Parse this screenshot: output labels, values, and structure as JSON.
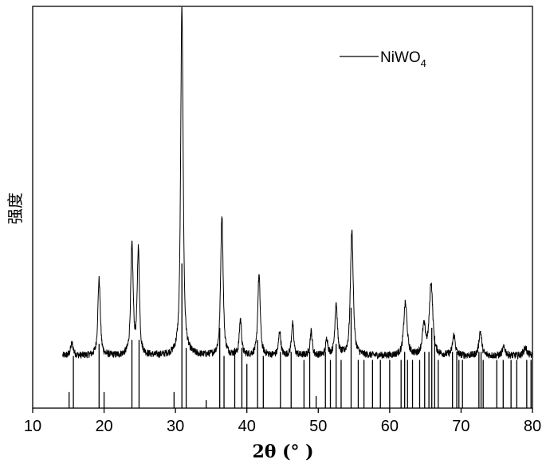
{
  "chart_data": {
    "type": "line",
    "title": "",
    "xlabel": "2θ (° )",
    "ylabel": "强度",
    "xlim": [
      10,
      80
    ],
    "ylim": [
      0,
      100
    ],
    "xticks": [
      10,
      20,
      30,
      40,
      50,
      60,
      70,
      80
    ],
    "grid": false,
    "legend": {
      "position": "top-right",
      "entries": [
        {
          "name": "NiWO",
          "subscript": "4"
        }
      ]
    },
    "pattern": {
      "baseline": 13,
      "noise": 0.9,
      "peaks": [
        {
          "x": 15.5,
          "h": 3,
          "w": 0.25
        },
        {
          "x": 19.3,
          "h": 19,
          "w": 0.22
        },
        {
          "x": 23.9,
          "h": 27,
          "w": 0.22
        },
        {
          "x": 24.8,
          "h": 26,
          "w": 0.2
        },
        {
          "x": 30.9,
          "h": 87,
          "w": 0.22
        },
        {
          "x": 36.5,
          "h": 35,
          "w": 0.22
        },
        {
          "x": 39.1,
          "h": 9,
          "w": 0.2
        },
        {
          "x": 41.7,
          "h": 20,
          "w": 0.22
        },
        {
          "x": 44.6,
          "h": 6,
          "w": 0.2
        },
        {
          "x": 46.4,
          "h": 8,
          "w": 0.2
        },
        {
          "x": 49.0,
          "h": 6,
          "w": 0.2
        },
        {
          "x": 51.2,
          "h": 4,
          "w": 0.2
        },
        {
          "x": 52.5,
          "h": 13,
          "w": 0.22
        },
        {
          "x": 54.7,
          "h": 31,
          "w": 0.25
        },
        {
          "x": 62.2,
          "h": 13,
          "w": 0.3
        },
        {
          "x": 64.8,
          "h": 7,
          "w": 0.3
        },
        {
          "x": 65.8,
          "h": 18,
          "w": 0.3
        },
        {
          "x": 69.0,
          "h": 5,
          "w": 0.25
        },
        {
          "x": 72.7,
          "h": 6,
          "w": 0.25
        },
        {
          "x": 76.0,
          "h": 2,
          "w": 0.3
        },
        {
          "x": 79.0,
          "h": 2,
          "w": 0.3
        }
      ]
    },
    "reference_lines": [
      {
        "x": 15.1,
        "h": 4
      },
      {
        "x": 15.7,
        "h": 13
      },
      {
        "x": 19.3,
        "h": 16
      },
      {
        "x": 20.0,
        "h": 4
      },
      {
        "x": 23.9,
        "h": 17
      },
      {
        "x": 24.9,
        "h": 17
      },
      {
        "x": 29.8,
        "h": 4
      },
      {
        "x": 30.9,
        "h": 36
      },
      {
        "x": 31.5,
        "h": 15
      },
      {
        "x": 34.3,
        "h": 2
      },
      {
        "x": 36.2,
        "h": 20
      },
      {
        "x": 36.8,
        "h": 13
      },
      {
        "x": 38.3,
        "h": 15
      },
      {
        "x": 39.3,
        "h": 15
      },
      {
        "x": 40.0,
        "h": 11
      },
      {
        "x": 41.5,
        "h": 17
      },
      {
        "x": 42.3,
        "h": 13
      },
      {
        "x": 44.7,
        "h": 14
      },
      {
        "x": 46.2,
        "h": 14
      },
      {
        "x": 48.0,
        "h": 12
      },
      {
        "x": 48.8,
        "h": 14
      },
      {
        "x": 49.7,
        "h": 3
      },
      {
        "x": 51.0,
        "h": 14
      },
      {
        "x": 51.7,
        "h": 12
      },
      {
        "x": 52.5,
        "h": 16
      },
      {
        "x": 53.2,
        "h": 12
      },
      {
        "x": 54.6,
        "h": 25
      },
      {
        "x": 55.6,
        "h": 12
      },
      {
        "x": 56.4,
        "h": 12
      },
      {
        "x": 57.6,
        "h": 12
      },
      {
        "x": 58.7,
        "h": 12
      },
      {
        "x": 60.0,
        "h": 12
      },
      {
        "x": 61.6,
        "h": 12
      },
      {
        "x": 62.1,
        "h": 14
      },
      {
        "x": 62.5,
        "h": 12
      },
      {
        "x": 63.2,
        "h": 12
      },
      {
        "x": 64.2,
        "h": 12
      },
      {
        "x": 64.9,
        "h": 14
      },
      {
        "x": 65.5,
        "h": 14
      },
      {
        "x": 65.9,
        "h": 20
      },
      {
        "x": 66.3,
        "h": 18
      },
      {
        "x": 66.8,
        "h": 12
      },
      {
        "x": 68.8,
        "h": 14
      },
      {
        "x": 69.4,
        "h": 14
      },
      {
        "x": 69.7,
        "h": 12
      },
      {
        "x": 70.2,
        "h": 12
      },
      {
        "x": 72.5,
        "h": 14
      },
      {
        "x": 72.8,
        "h": 14
      },
      {
        "x": 73.1,
        "h": 12
      },
      {
        "x": 75.0,
        "h": 12
      },
      {
        "x": 75.9,
        "h": 12
      },
      {
        "x": 77.0,
        "h": 12
      },
      {
        "x": 77.8,
        "h": 12
      },
      {
        "x": 79.2,
        "h": 12
      },
      {
        "x": 79.8,
        "h": 12
      }
    ],
    "colors": {
      "line": "#000000",
      "axes": "#000000"
    }
  }
}
